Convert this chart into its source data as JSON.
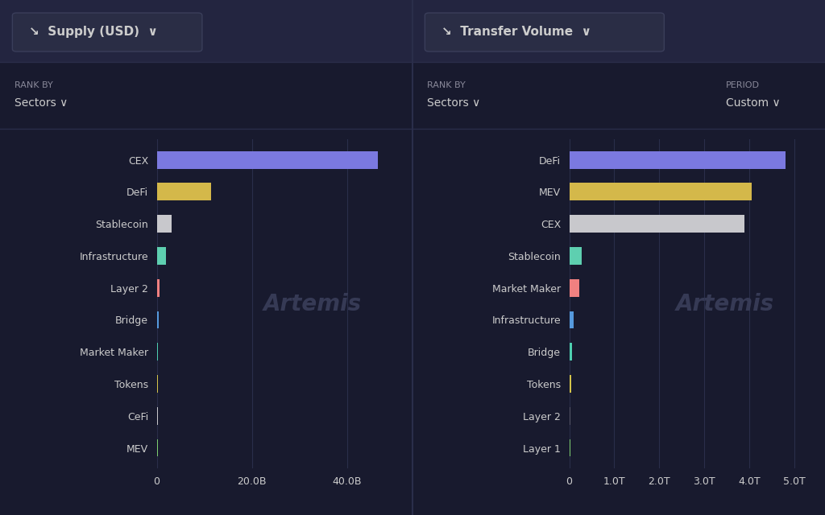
{
  "bg_color": "#181a2e",
  "header_bg": "#232540",
  "title_btn_bg": "#2a2d45",
  "text_color": "#cccccc",
  "dim_text": "#888899",
  "grid_color": "#2a2e4a",
  "left_chart": {
    "title": "↘  Supply (USD)  ∨",
    "rank_label": "RANK BY",
    "rank_value": "Sectors ∨",
    "categories": [
      "CEX",
      "DeFi",
      "Stablecoin",
      "Infrastructure",
      "Layer 2",
      "Bridge",
      "Market Maker",
      "Tokens",
      "CeFi",
      "MEV"
    ],
    "values": [
      46.5,
      11.5,
      3.2,
      1.9,
      0.55,
      0.38,
      0.32,
      0.28,
      0.22,
      0.18
    ],
    "colors": [
      "#7b79e0",
      "#d4b84a",
      "#c8c8cc",
      "#5ecfb0",
      "#f08080",
      "#5599dd",
      "#4ecfb0",
      "#d4c44a",
      "#c8c8cc",
      "#7ecf70"
    ],
    "xlim": [
      0,
      52
    ],
    "xticks": [
      0,
      20,
      40
    ],
    "xticklabels": [
      "0",
      "20.0B",
      "40.0B"
    ]
  },
  "right_chart": {
    "title": "↘  Transfer Volume  ∨",
    "rank_label": "RANK BY",
    "rank_value": "Sectors ∨",
    "period_label": "PERIOD",
    "period_value": "Custom ∨",
    "categories": [
      "DeFi",
      "MEV",
      "CEX",
      "Stablecoin",
      "Market Maker",
      "Infrastructure",
      "Bridge",
      "Tokens",
      "Layer 2",
      "Layer 1"
    ],
    "values": [
      4.8,
      4.05,
      3.9,
      0.28,
      0.22,
      0.09,
      0.055,
      0.038,
      0.022,
      0.018
    ],
    "colors": [
      "#7b79e0",
      "#d4b84a",
      "#c8c8cc",
      "#5ecfb0",
      "#f08080",
      "#5599dd",
      "#4ecfb0",
      "#d4c44a",
      "#555566",
      "#7ecf70"
    ],
    "xlim": [
      0,
      5.5
    ],
    "xticks": [
      0,
      1,
      2,
      3,
      4,
      5
    ],
    "xticklabels": [
      "0",
      "1.0T",
      "2.0T",
      "3.0T",
      "4.0T",
      "5.0T"
    ]
  }
}
